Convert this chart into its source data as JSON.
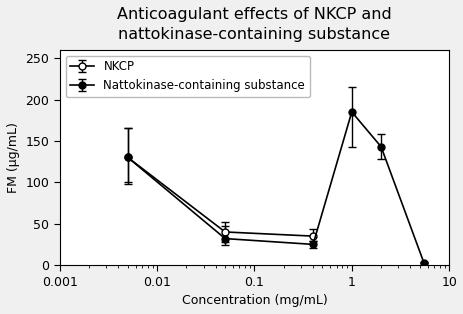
{
  "title": "Anticoagulant effects of NKCP and\nnattokinase-containing substance",
  "xlabel": "Concentration (mg/mL)",
  "ylabel": "FM (µg/mL)",
  "xlim": [
    0.001,
    10
  ],
  "ylim": [
    0,
    260
  ],
  "yticks": [
    0,
    50,
    100,
    150,
    200,
    250
  ],
  "nkcp": {
    "x": [
      0.005,
      0.05,
      0.4
    ],
    "y": [
      130,
      40,
      35
    ],
    "yerr_low": [
      32,
      12,
      6
    ],
    "yerr_high": [
      35,
      12,
      8
    ],
    "color": "#000000",
    "marker": "o",
    "markerfacecolor": "white",
    "label": "NKCP"
  },
  "nattokinase": {
    "x": [
      0.005,
      0.05,
      0.4,
      1.0,
      2.0,
      5.5
    ],
    "y": [
      130,
      32,
      25,
      185,
      143,
      3
    ],
    "yerr_low": [
      30,
      8,
      4,
      42,
      15,
      1
    ],
    "yerr_high": [
      35,
      15,
      4,
      30,
      15,
      1
    ],
    "color": "#000000",
    "marker": "o",
    "markerfacecolor": "#000000",
    "label": "Nattokinase-containing substance"
  },
  "background_color": "#f0f0f0",
  "plot_bg_color": "#ffffff",
  "title_fontsize": 11.5,
  "axis_fontsize": 9,
  "legend_fontsize": 8.5
}
